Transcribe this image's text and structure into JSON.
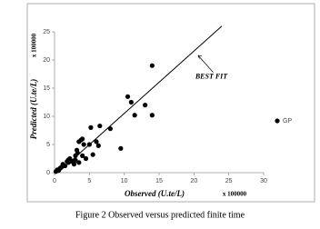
{
  "chart_data": {
    "type": "scatter",
    "caption": "Figure 2 Observed versus predicted finite time",
    "x_label": "Observed (U.te/L)",
    "x_multiplier": "x 100000",
    "y_label": "Predicted (U.te/L)",
    "y_multiplier": "x 100000",
    "annotation": "BEST FIT",
    "xlim": [
      0,
      30
    ],
    "xticks": [
      0,
      5,
      10,
      15,
      20,
      25,
      30
    ],
    "ylim": [
      0,
      25
    ],
    "yticks": [
      0,
      5,
      10,
      15,
      20,
      25
    ],
    "grid": false,
    "legend": "right",
    "fit_line": {
      "x": [
        0.5,
        24
      ],
      "y": [
        0,
        26
      ]
    },
    "series": [
      {
        "name": "GP",
        "color": "#000000",
        "x": [
          0.2,
          0.4,
          0.6,
          0.8,
          1,
          1.2,
          1.5,
          1.8,
          2,
          2.2,
          2.5,
          2.8,
          3,
          3,
          3.2,
          3.5,
          3.3,
          4,
          4,
          4.2,
          4.5,
          5,
          5.2,
          5.5,
          6,
          6.3,
          6.5,
          8,
          9.5,
          10.5,
          11,
          11.5,
          13,
          14,
          14,
          3.8,
          2,
          3.5
        ],
        "values": [
          0.2,
          0.5,
          0.4,
          0.8,
          1,
          1.5,
          1.2,
          2,
          1.8,
          2.5,
          2,
          1.5,
          2.2,
          3,
          4,
          5.5,
          3.5,
          3,
          6,
          5,
          2.5,
          5,
          8,
          3.2,
          5.5,
          4.8,
          8.3,
          7.8,
          4.3,
          13.5,
          12.5,
          10.2,
          12,
          19,
          10.2,
          5.8,
          2.3,
          1.8
        ]
      }
    ]
  }
}
